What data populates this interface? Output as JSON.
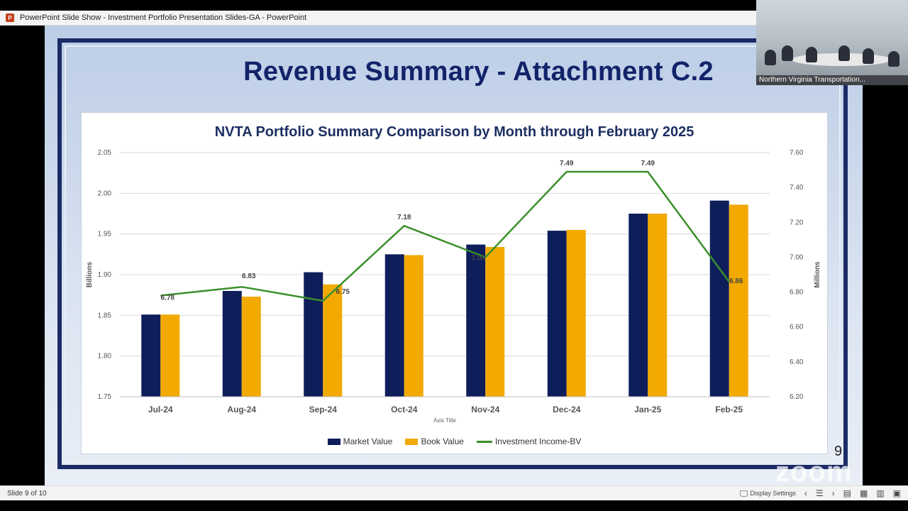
{
  "window": {
    "title": "PowerPoint Slide Show  -  Investment Portfolio Presentation Slides-GA  -  PowerPoint",
    "app_icon": "powerpoint-icon"
  },
  "slide": {
    "title": "Revenue Summary - Attachment C.2",
    "number": "9"
  },
  "video": {
    "caption": "Northern Virginia Transportation..."
  },
  "branding": {
    "zoom_watermark": "zoom"
  },
  "chart_data": {
    "type": "bar",
    "title": "NVTA Portfolio Summary Comparison by Month through February 2025",
    "categories": [
      "Jul-24",
      "Aug-24",
      "Sep-24",
      "Oct-24",
      "Nov-24",
      "Dec-24",
      "Jan-25",
      "Feb-25"
    ],
    "xlabel": "Axis Title",
    "ylabel": "Billions",
    "y2label": "Millions",
    "ylim": [
      1.75,
      2.05
    ],
    "y2lim": [
      6.2,
      7.6
    ],
    "yticks": [
      "1.75",
      "1.80",
      "1.85",
      "1.90",
      "1.95",
      "2.00",
      "2.05"
    ],
    "y2ticks": [
      "6.20",
      "6.40",
      "6.60",
      "6.80",
      "7.00",
      "7.20",
      "7.40",
      "7.60"
    ],
    "series": [
      {
        "name": "Market Value",
        "type": "bar",
        "axis": "left",
        "color": "#0e1e5b",
        "values": [
          1.851,
          1.88,
          1.903,
          1.925,
          1.937,
          1.954,
          1.975,
          1.991
        ]
      },
      {
        "name": "Book Value",
        "type": "bar",
        "axis": "left",
        "color": "#f2a900",
        "values": [
          1.851,
          1.873,
          1.888,
          1.924,
          1.934,
          1.955,
          1.975,
          1.986
        ]
      },
      {
        "name": "Investment Income-BV",
        "type": "line",
        "axis": "right",
        "color": "#3a8f2a",
        "values": [
          6.78,
          6.83,
          6.75,
          7.18,
          7.0,
          7.49,
          7.49,
          6.86
        ],
        "labels": [
          "6.78",
          "6.83",
          "6.75",
          "7.18",
          "7.00",
          "7.49",
          "7.49",
          "6.86"
        ]
      }
    ],
    "grid": true,
    "legend": "bottom"
  },
  "statusbar": {
    "slide_indicator": "Slide 9 of 10",
    "display_settings": "Display Settings"
  }
}
